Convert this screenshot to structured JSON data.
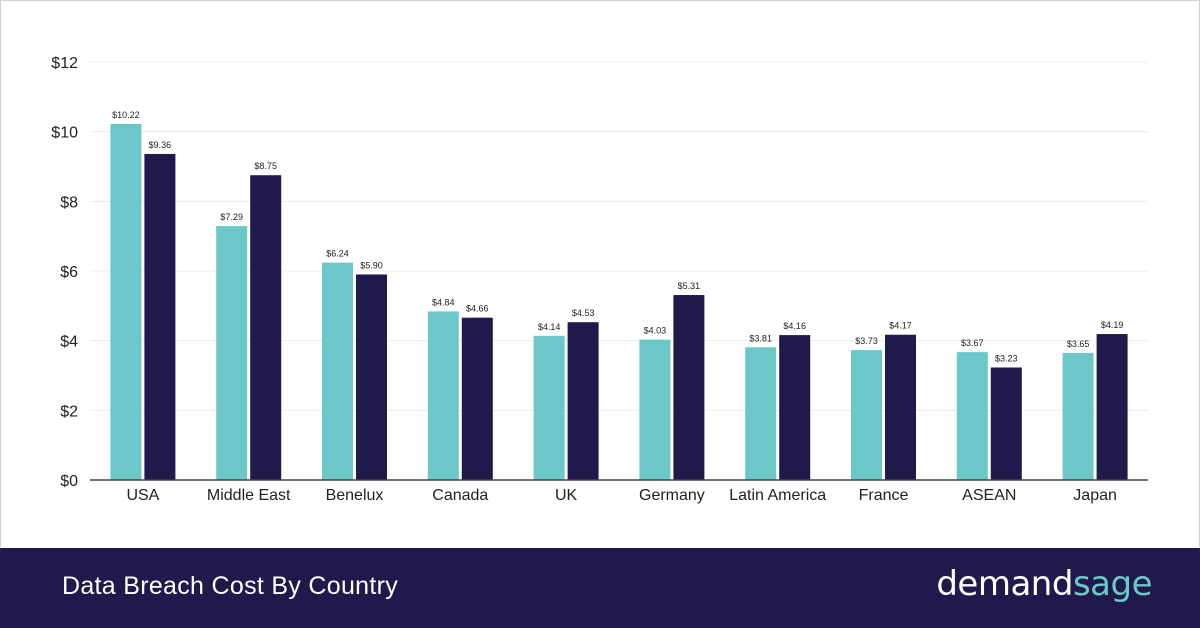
{
  "chart_data": {
    "type": "bar",
    "categories": [
      "USA",
      "Middle East",
      "Benelux",
      "Canada",
      "UK",
      "Germany",
      "Latin America",
      "France",
      "ASEAN",
      "Japan"
    ],
    "series": [
      {
        "color": "#6cc8c8",
        "values": [
          10.22,
          7.29,
          6.24,
          4.84,
          4.14,
          4.03,
          3.81,
          3.73,
          3.67,
          3.65
        ],
        "labels": [
          "$10.22",
          "$7.29",
          "$6.24",
          "$4.84",
          "$4.14",
          "$4.03",
          "$3.81",
          "$3.73",
          "$3.67",
          "$3.65"
        ]
      },
      {
        "color": "#1f1a4b",
        "values": [
          9.36,
          8.75,
          5.9,
          4.66,
          4.53,
          5.31,
          4.16,
          4.17,
          3.23,
          4.19
        ],
        "labels": [
          "$9.36",
          "$8.75",
          "$5.90",
          "$4.66",
          "$4.53",
          "$5.31",
          "$4.16",
          "$4.17",
          "$3.23",
          "$4.19"
        ]
      }
    ],
    "ylim": [
      0,
      12
    ],
    "yticks": [
      0,
      2,
      4,
      6,
      8,
      10,
      12
    ],
    "ytick_labels": [
      "$0",
      "$2",
      "$4",
      "$6",
      "$8",
      "$10",
      "$12"
    ],
    "grid": true,
    "legend": "none"
  },
  "footer": {
    "title": "Data Breach Cost By Country",
    "logo_part1": "demand",
    "logo_part2": "sage"
  },
  "colors": {
    "teal": "#6cc8c8",
    "navy": "#1f1a4b",
    "grid": "#ececec",
    "axis": "#444444"
  }
}
